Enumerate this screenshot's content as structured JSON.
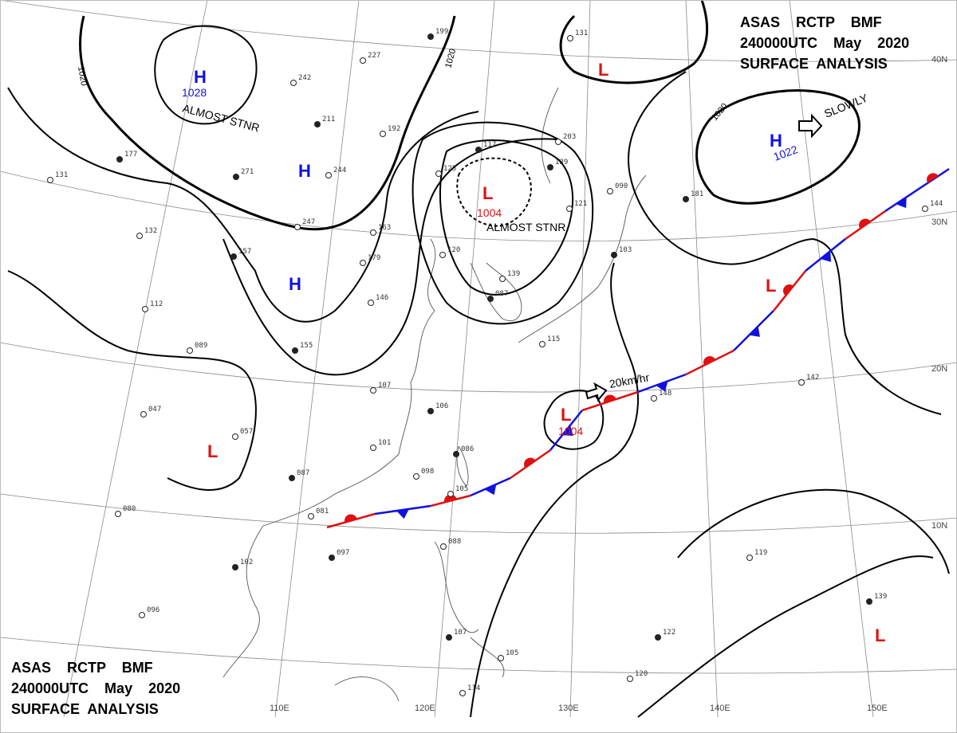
{
  "header": {
    "top_right": [
      "ASAS    RCTP    BMF",
      "240000UTC    May    2020",
      "SURFACE  ANALYSIS"
    ],
    "bottom_left": [
      "ASAS    RCTP    BMF",
      "240000UTC    May    2020",
      "SURFACE  ANALYSIS"
    ]
  },
  "grid": {
    "lat_labels": [
      "40N",
      "30N",
      "20N",
      "10N"
    ],
    "lon_labels": [
      "110E",
      "120E",
      "130E",
      "140E",
      "150E"
    ]
  },
  "pressure_centers": [
    {
      "type": "H",
      "value": "1028",
      "note": "ALMOST STNR"
    },
    {
      "type": "H",
      "value": "",
      "note": ""
    },
    {
      "type": "H",
      "value": "",
      "note": ""
    },
    {
      "type": "L",
      "value": "1004",
      "note": "ALMOST STNR"
    },
    {
      "type": "L",
      "value": "",
      "note": ""
    },
    {
      "type": "H",
      "value": "1022",
      "note": "SLOWLY"
    },
    {
      "type": "L",
      "value": "",
      "note": ""
    },
    {
      "type": "L",
      "value": "1004",
      "note": ""
    },
    {
      "type": "L",
      "value": "",
      "note": ""
    },
    {
      "type": "L",
      "value": "",
      "note": ""
    }
  ],
  "isobar_labels": [
    "1020",
    "1020",
    "1020",
    "1020"
  ],
  "motion_label": "20km/hr",
  "colors": {
    "high": "#1010e0",
    "low": "#e01010",
    "warm_front": "#e01010",
    "cold_front": "#1010e0",
    "line": "#000000"
  },
  "station_samples": [
    "199",
    "227",
    "242",
    "211",
    "192",
    "244",
    "271",
    "247",
    "163",
    "177",
    "131",
    "132",
    "157",
    "179",
    "146",
    "155",
    "112",
    "089",
    "097",
    "047",
    "057",
    "087",
    "081",
    "080",
    "102",
    "096",
    "107",
    "106",
    "101",
    "098",
    "086",
    "105",
    "088",
    "107",
    "105",
    "114",
    "122",
    "120",
    "119",
    "139",
    "142",
    "148",
    "181",
    "144",
    "203",
    "189",
    "121",
    "090",
    "103",
    "131",
    "139",
    "117",
    "125",
    "120",
    "087",
    "115"
  ]
}
